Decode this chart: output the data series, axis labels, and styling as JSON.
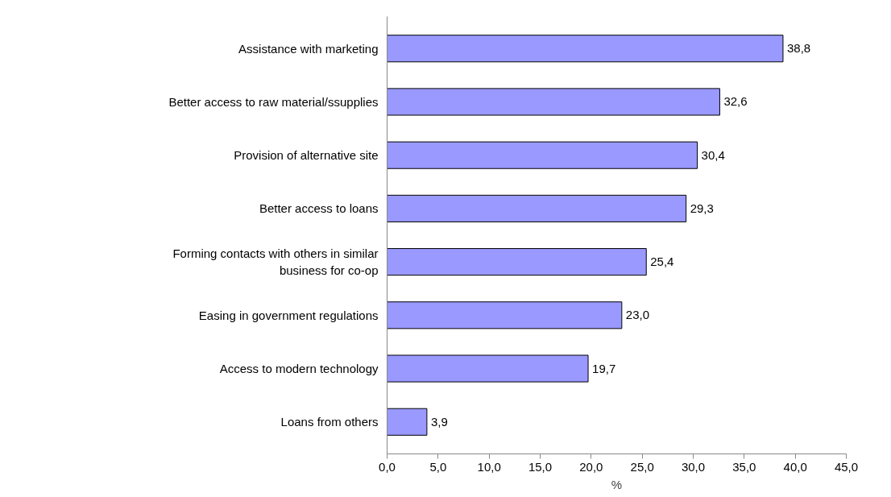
{
  "chart_data": {
    "type": "bar",
    "orientation": "horizontal",
    "xlabel": "%",
    "categories": [
      "Assistance with marketing",
      "Better access to raw material/ssupplies",
      "Provision of alternative site",
      "Better access to loans",
      "Forming contacts with others in similar\nbusiness for co-op",
      "Easing in government regulations",
      "Access to modern technology",
      "Loans from others"
    ],
    "values": [
      38.8,
      32.6,
      30.4,
      29.3,
      25.4,
      23.0,
      19.7,
      3.9
    ],
    "value_labels": [
      "38,8",
      "32,6",
      "30,4",
      "29,3",
      "25,4",
      "23,0",
      "19,7",
      "3,9"
    ],
    "color": "#9999ff",
    "xlim": [
      0,
      45
    ],
    "xticks": [
      {
        "value": 0,
        "label": "0,0"
      },
      {
        "value": 5,
        "label": "5,0"
      },
      {
        "value": 10,
        "label": "10,0"
      },
      {
        "value": 15,
        "label": "15,0"
      },
      {
        "value": 20,
        "label": "20,0"
      },
      {
        "value": 25,
        "label": "25,0"
      },
      {
        "value": 30,
        "label": "30,0"
      },
      {
        "value": 35,
        "label": "35,0"
      },
      {
        "value": 40,
        "label": "40,0"
      },
      {
        "value": 45,
        "label": "45,0"
      }
    ],
    "grid": false,
    "legend": false
  }
}
